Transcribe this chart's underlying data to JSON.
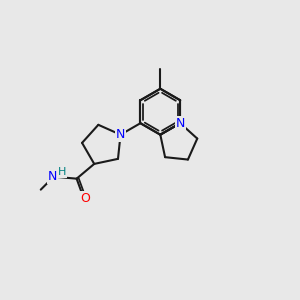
{
  "background_color": "#e8e8e8",
  "bond_color": "#1a1a1a",
  "nitrogen_color": "#0000ff",
  "oxygen_color": "#ff0000",
  "hydrogen_color": "#008080",
  "figsize": [
    3.0,
    3.0
  ],
  "dpi": 100,
  "xlim": [
    0,
    10
  ],
  "ylim": [
    0,
    10
  ]
}
